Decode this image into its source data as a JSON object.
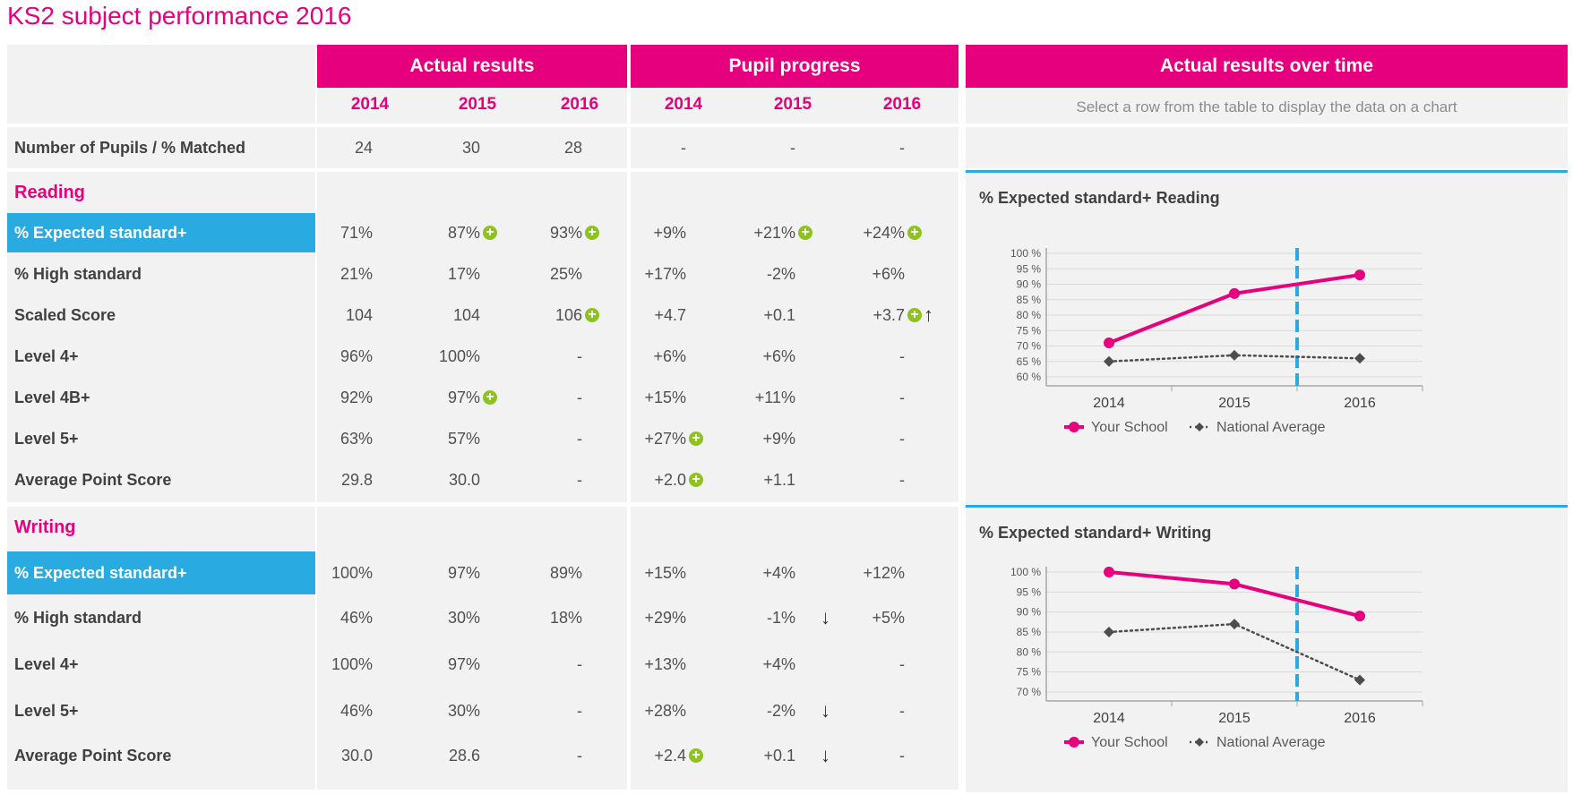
{
  "page": {
    "title": "KS2 subject performance 2016"
  },
  "headers": {
    "actual": "Actual results",
    "progress": "Pupil progress",
    "overtime": "Actual results over time",
    "years": [
      "2014",
      "2015",
      "2016"
    ],
    "hint": "Select a row from the table to display the data on a chart"
  },
  "pupils_row": {
    "label": "Number of Pupils / % Matched",
    "cells": [
      "24",
      "30",
      "28",
      "-",
      "-",
      "-"
    ]
  },
  "reading": {
    "title": "Reading",
    "rows": [
      {
        "label": "% Expected standard+",
        "highlight": true,
        "cells": [
          {
            "v": "71%"
          },
          {
            "v": "87%",
            "plus": true
          },
          {
            "v": "93%",
            "plus": true
          },
          {
            "v": "+9%"
          },
          {
            "v": "+21%",
            "plus": true
          },
          {
            "v": "+24%",
            "plus": true
          }
        ]
      },
      {
        "label": "% High standard",
        "cells": [
          {
            "v": "21%"
          },
          {
            "v": "17%"
          },
          {
            "v": "25%"
          },
          {
            "v": "+17%"
          },
          {
            "v": "-2%"
          },
          {
            "v": "+6%"
          }
        ]
      },
      {
        "label": "Scaled Score",
        "cells": [
          {
            "v": "104"
          },
          {
            "v": "104"
          },
          {
            "v": "106",
            "plus": true
          },
          {
            "v": "+4.7"
          },
          {
            "v": "+0.1"
          },
          {
            "v": "+3.7",
            "plus": true,
            "arrow": "up"
          }
        ]
      },
      {
        "label": "Level 4+",
        "cells": [
          {
            "v": "96%"
          },
          {
            "v": "100%"
          },
          {
            "v": "-"
          },
          {
            "v": "+6%"
          },
          {
            "v": "+6%"
          },
          {
            "v": "-"
          }
        ]
      },
      {
        "label": "Level 4B+",
        "cells": [
          {
            "v": "92%"
          },
          {
            "v": "97%",
            "plus": true
          },
          {
            "v": "-"
          },
          {
            "v": "+15%"
          },
          {
            "v": "+11%"
          },
          {
            "v": "-"
          }
        ]
      },
      {
        "label": "Level 5+",
        "cells": [
          {
            "v": "63%"
          },
          {
            "v": "57%"
          },
          {
            "v": "-"
          },
          {
            "v": "+27%",
            "plus": true
          },
          {
            "v": "+9%"
          },
          {
            "v": "-"
          }
        ]
      },
      {
        "label": "Average Point Score",
        "cells": [
          {
            "v": "29.8"
          },
          {
            "v": "30.0"
          },
          {
            "v": "-"
          },
          {
            "v": "+2.0",
            "plus": true
          },
          {
            "v": "+1.1"
          },
          {
            "v": "-"
          }
        ]
      }
    ]
  },
  "writing": {
    "title": "Writing",
    "rows": [
      {
        "label": "% Expected standard+",
        "highlight": true,
        "cells": [
          {
            "v": "100%"
          },
          {
            "v": "97%"
          },
          {
            "v": "89%"
          },
          {
            "v": "+15%"
          },
          {
            "v": "+4%"
          },
          {
            "v": "+12%"
          }
        ]
      },
      {
        "label": "% High standard",
        "cells": [
          {
            "v": "46%"
          },
          {
            "v": "30%"
          },
          {
            "v": "18%"
          },
          {
            "v": "+29%"
          },
          {
            "v": "-1%",
            "arrow": "down"
          },
          {
            "v": "+5%"
          }
        ]
      },
      {
        "label": "Level 4+",
        "cells": [
          {
            "v": "100%"
          },
          {
            "v": "97%"
          },
          {
            "v": "-"
          },
          {
            "v": "+13%"
          },
          {
            "v": "+4%"
          },
          {
            "v": "-"
          }
        ]
      },
      {
        "label": "Level 5+",
        "cells": [
          {
            "v": "46%"
          },
          {
            "v": "30%"
          },
          {
            "v": "-"
          },
          {
            "v": "+28%"
          },
          {
            "v": "-2%",
            "arrow": "down"
          },
          {
            "v": "-"
          }
        ]
      },
      {
        "label": "Average Point Score",
        "cells": [
          {
            "v": "30.0"
          },
          {
            "v": "28.6"
          },
          {
            "v": "-"
          },
          {
            "v": "+2.4",
            "plus": true
          },
          {
            "v": "+0.1",
            "arrow": "down"
          },
          {
            "v": "-"
          }
        ]
      }
    ]
  },
  "colors": {
    "accent": "#e6007e",
    "highlight": "#29abe2",
    "positive": "#8dc21f",
    "national": "#4d4d4d"
  },
  "chart_data": [
    {
      "type": "line",
      "title": "% Expected standard+ Reading",
      "categories": [
        "2014",
        "2015",
        "2016"
      ],
      "ylim": [
        60,
        100
      ],
      "yticks": [
        "100 %",
        "95 %",
        "90 %",
        "85 %",
        "80 %",
        "75 %",
        "70 %",
        "65 %",
        "60 %"
      ],
      "ytick_values": [
        100,
        95,
        90,
        85,
        80,
        75,
        70,
        65,
        60
      ],
      "series": [
        {
          "name": "Your School",
          "values": [
            71,
            87,
            93
          ],
          "color": "#e6007e",
          "style": "solid",
          "marker": "circle"
        },
        {
          "name": "National Average",
          "values": [
            65,
            67,
            66
          ],
          "color": "#4d4d4d",
          "style": "dotted",
          "marker": "diamond"
        }
      ],
      "marker_line_between": [
        "2015",
        "2016"
      ],
      "grid": true,
      "legend": "bottom"
    },
    {
      "type": "line",
      "title": "% Expected standard+ Writing",
      "categories": [
        "2014",
        "2015",
        "2016"
      ],
      "ylim": [
        70,
        100
      ],
      "yticks": [
        "100 %",
        "95 %",
        "90 %",
        "85 %",
        "80 %",
        "75 %",
        "70 %"
      ],
      "ytick_values": [
        100,
        95,
        90,
        85,
        80,
        75,
        70
      ],
      "series": [
        {
          "name": "Your School",
          "values": [
            100,
            97,
            89
          ],
          "color": "#e6007e",
          "style": "solid",
          "marker": "circle"
        },
        {
          "name": "National Average",
          "values": [
            85,
            87,
            73
          ],
          "color": "#4d4d4d",
          "style": "dotted",
          "marker": "diamond"
        }
      ],
      "marker_line_between": [
        "2015",
        "2016"
      ],
      "grid": true,
      "legend": "bottom"
    }
  ]
}
